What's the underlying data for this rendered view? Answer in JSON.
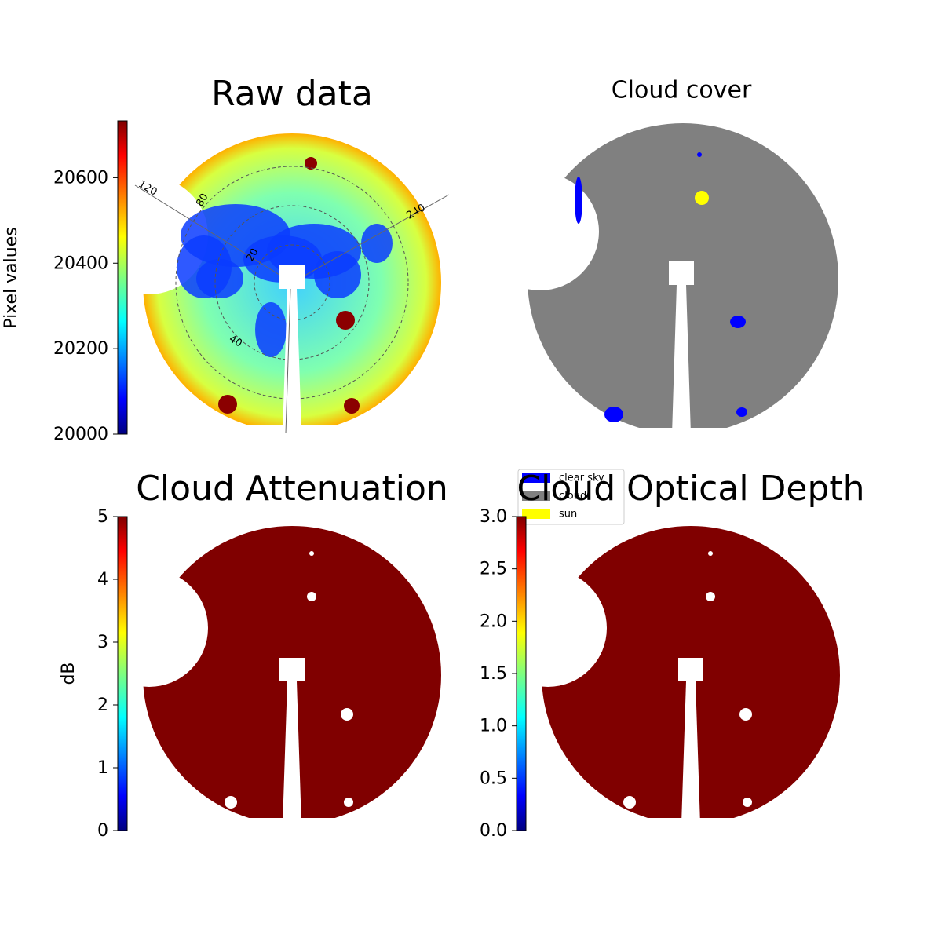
{
  "chart_data": [
    {
      "type": "image",
      "title": "Raw data",
      "ylabel": "Pixel values",
      "ylim": [
        20000,
        20733
      ],
      "yticks": [
        20000,
        20200,
        20400,
        20600
      ],
      "polar_labels": [
        "120",
        "80",
        "240",
        "20",
        "40"
      ]
    },
    {
      "type": "classes",
      "title": "Cloud cover",
      "series": [
        {
          "name": "clear sky",
          "color": "#0000ff"
        },
        {
          "name": "cloud",
          "color": "#808080"
        },
        {
          "name": "sun",
          "color": "#ffff00"
        }
      ]
    },
    {
      "type": "image",
      "title": "Cloud Attenuation",
      "ylabel": "dB",
      "ylim": [
        0,
        5
      ],
      "yticks": [
        0,
        1,
        2,
        3,
        4,
        5
      ]
    },
    {
      "type": "image",
      "title": "Cloud Optical Depth",
      "ylim": [
        0,
        3
      ],
      "yticks": [
        {
          "value": 0,
          "label": "0.0"
        },
        {
          "value": 0.5,
          "label": "0.5"
        },
        {
          "value": 1,
          "label": "1.0"
        },
        {
          "value": 1.5,
          "label": "1.5"
        },
        {
          "value": 2,
          "label": "2.0"
        },
        {
          "value": 2.5,
          "label": "2.5"
        },
        {
          "value": 3,
          "label": "3.0"
        }
      ]
    }
  ]
}
